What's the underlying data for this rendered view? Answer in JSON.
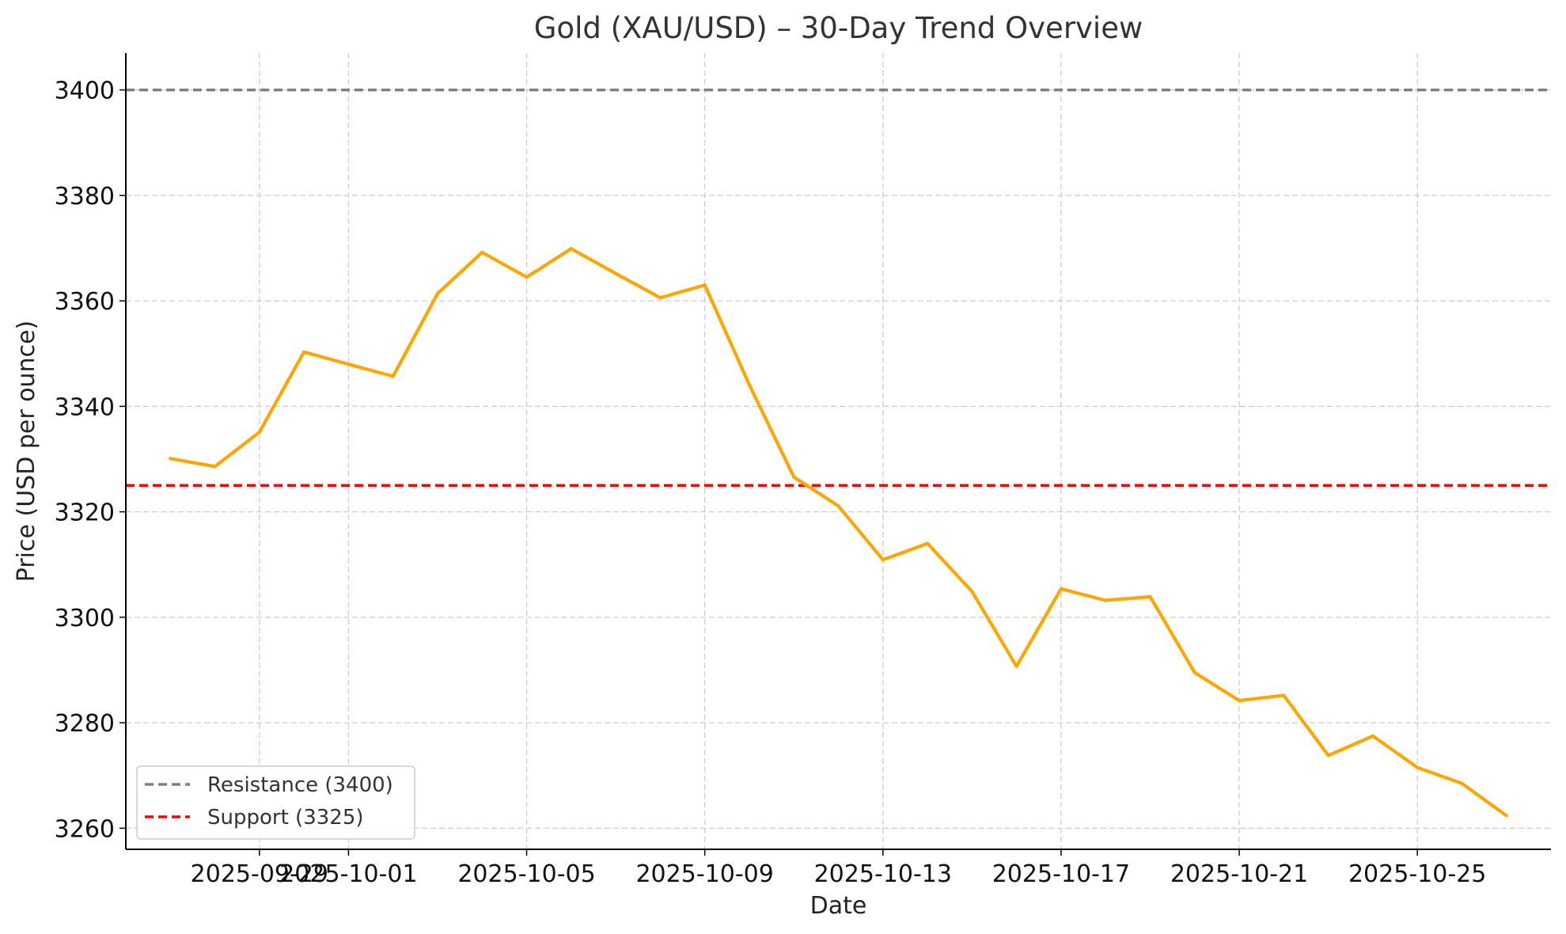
{
  "chart_data": {
    "type": "line",
    "title": "Gold (XAU/USD) – 30-Day Trend Overview",
    "xlabel": "Date",
    "ylabel": "Price (USD per ounce)",
    "ylim": [
      3256,
      3407
    ],
    "xlim": [
      "2025-09-26",
      "2025-10-28"
    ],
    "grid": true,
    "legend_position": "lower-left",
    "x_ticks": [
      "2025-09-29",
      "2025-10-01",
      "2025-10-05",
      "2025-10-09",
      "2025-10-13",
      "2025-10-17",
      "2025-10-21",
      "2025-10-25"
    ],
    "y_ticks": [
      3260,
      3280,
      3300,
      3320,
      3340,
      3360,
      3380,
      3400
    ],
    "series": [
      {
        "color": "#FFA500",
        "x": [
          "2025-09-27",
          "2025-09-28",
          "2025-09-29",
          "2025-09-30",
          "2025-10-01",
          "2025-10-02",
          "2025-10-03",
          "2025-10-04",
          "2025-10-05",
          "2025-10-06",
          "2025-10-07",
          "2025-10-08",
          "2025-10-09",
          "2025-10-10",
          "2025-10-11",
          "2025-10-12",
          "2025-10-13",
          "2025-10-14",
          "2025-10-15",
          "2025-10-16",
          "2025-10-17",
          "2025-10-18",
          "2025-10-19",
          "2025-10-20",
          "2025-10-21",
          "2025-10-22",
          "2025-10-23",
          "2025-10-24",
          "2025-10-25",
          "2025-10-26",
          "2025-10-27"
        ],
        "values": [
          3330.1,
          3328.6,
          3335.1,
          3350.3,
          3348.0,
          3345.7,
          3361.4,
          3369.2,
          3364.5,
          3369.9,
          3365.2,
          3360.6,
          3363.0,
          3344.1,
          3326.6,
          3321.1,
          3310.9,
          3314.0,
          3304.9,
          3290.7,
          3305.4,
          3303.2,
          3303.9,
          3289.5,
          3284.2,
          3285.2,
          3273.8,
          3277.5,
          3271.5,
          3268.5,
          3262.4
        ]
      }
    ],
    "reference_lines": [
      {
        "name": "Resistance (3400)",
        "value": 3400,
        "color": "#7f7f7f"
      },
      {
        "name": "Support (3325)",
        "value": 3325,
        "color": "#ff0000"
      }
    ]
  }
}
